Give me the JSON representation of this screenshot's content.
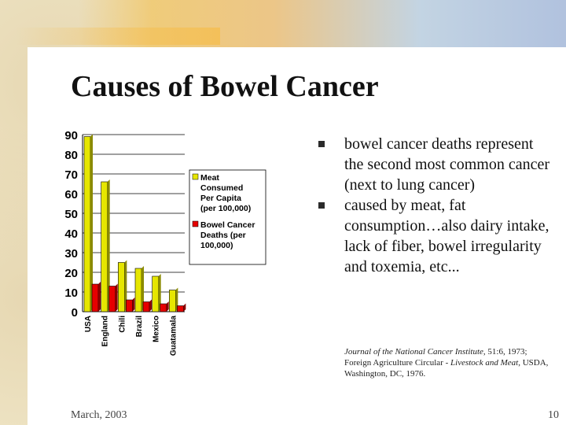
{
  "slide": {
    "title": "Causes of Bowel Cancer",
    "bullets": [
      "bowel cancer deaths represent the second most common cancer (next to lung cancer)",
      "caused by meat, fat consumption…also dairy intake, lack of fiber, bowel irregularity and toxemia, etc..."
    ],
    "citation": {
      "journal": "Journal of the National Cancer Institute",
      "part1": ", 51:6, 1973; Foreign Agriculture Circular - ",
      "italic2": "Livestock and Meat",
      "part2": ", USDA, Washington, DC, 1976."
    },
    "footer_date": "March, 2003",
    "page_number": "10"
  },
  "chart_data": {
    "type": "bar",
    "categories": [
      "USA",
      "England",
      "Chili",
      "Brazil",
      "Mexico",
      "Guatamala"
    ],
    "series": [
      {
        "name": "Meat Consumed Per Capita (per 100,000)",
        "color": "#e6e600",
        "values": [
          89,
          66,
          25,
          22,
          18,
          11
        ]
      },
      {
        "name": "Bowel Cancer Deaths (per 100,000)",
        "color": "#e60000",
        "values": [
          14,
          13,
          6,
          5,
          4,
          3
        ]
      }
    ],
    "legend_lines": [
      [
        "Meat",
        "Consumed",
        "Per Capita",
        "(per 100,000)"
      ],
      [
        "Bowel Cancer",
        "Deaths (per",
        "100,000)"
      ]
    ],
    "yticks": [
      "0",
      "10",
      "20",
      "30",
      "40",
      "50",
      "60",
      "70",
      "80",
      "90"
    ],
    "ylim": [
      0,
      90
    ],
    "legend_position": "right",
    "grid": true
  }
}
